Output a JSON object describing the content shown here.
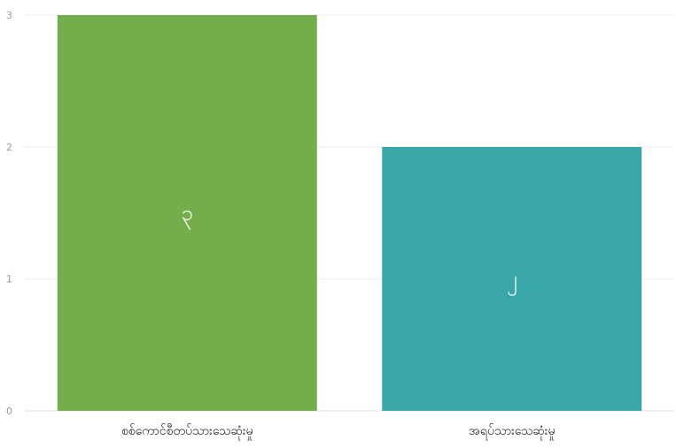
{
  "chart_data": {
    "type": "bar",
    "categories": [
      "စစ်ကောင်စီတပ်သားသေဆုံးမှု",
      "အရပ်သားသေဆုံးမှု"
    ],
    "values": [
      3,
      2
    ],
    "value_labels": [
      "၃",
      "၂"
    ],
    "colors": [
      "#73ae4a",
      "#39a6a8"
    ],
    "ylim": [
      0,
      3
    ],
    "yticks": [
      "0",
      "1",
      "2",
      "3"
    ],
    "grid": true,
    "title": "",
    "xlabel": "",
    "ylabel": ""
  },
  "style": {
    "grid_color": "#ececec",
    "axis_color": "#e2e2e2"
  }
}
